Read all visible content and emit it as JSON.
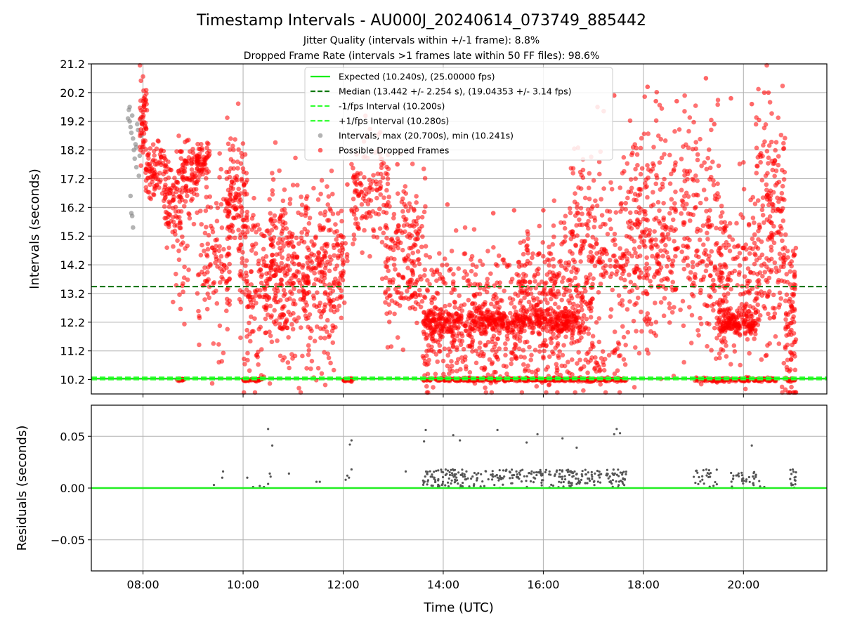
{
  "figure": {
    "title": "Timestamp Intervals - AU000J_20240614_073749_885442",
    "subtitle_1": "Jitter Quality (intervals within +/-1 frame): 8.8%",
    "subtitle_2": "Dropped Frame Rate (intervals >1 frames late within 50 FF files): 98.6%"
  },
  "colors": {
    "expected": "#00ee00",
    "median": "#007700",
    "band": "#33ff33",
    "intervals": "#808080",
    "dropped": "#ff0000",
    "grid": "#b0b0b0",
    "residual_line": "#22ee22",
    "residual_points": "#555555"
  },
  "chart_data": [
    {
      "type": "scatter",
      "name": "intervals",
      "xlabel": "",
      "ylabel": "Intervals (seconds)",
      "xlim": [
        "06:58",
        "21:40"
      ],
      "ylim": [
        9.7,
        21.2
      ],
      "x_ticks": [
        "08:00",
        "10:00",
        "12:00",
        "14:00",
        "16:00",
        "18:00",
        "20:00"
      ],
      "y_ticks": [
        10.2,
        11.2,
        12.2,
        13.2,
        14.2,
        15.2,
        16.2,
        17.2,
        18.2,
        19.2,
        20.2,
        21.2
      ],
      "y_tick_labels": [
        "10.2",
        "11.2",
        "12.2",
        "13.2",
        "14.2",
        "15.2",
        "16.2",
        "17.2",
        "18.2",
        "19.2",
        "20.2",
        "21.2"
      ],
      "grid": true,
      "legend_position": "top-center",
      "legend": [
        {
          "key": "expected",
          "label": "Expected (10.240s), (25.00000 fps)",
          "style": "solid-line"
        },
        {
          "key": "median",
          "label": "Median (13.442 +/- 2.254 s), (19.04353 +/- 3.14 fps)",
          "style": "dashed-line"
        },
        {
          "key": "minus",
          "label": "-1/fps Interval (10.200s)",
          "style": "dashed-line"
        },
        {
          "key": "plus",
          "label": "+1/fps Interval (10.280s)",
          "style": "dashed-line"
        },
        {
          "key": "intervals",
          "label": "Intervals, max (20.700s), min (10.241s)",
          "style": "marker"
        },
        {
          "key": "dropped",
          "label": "Possible Dropped Frames",
          "style": "marker"
        }
      ],
      "reference_lines": [
        {
          "key": "expected",
          "y": 10.24
        },
        {
          "key": "median",
          "y": 13.442
        },
        {
          "key": "minus",
          "y": 10.2
        },
        {
          "key": "plus",
          "y": 10.28
        }
      ],
      "series": [
        {
          "key": "intervals",
          "points": [
            [
              "07:43",
              19.6
            ],
            [
              "07:44",
              19.2
            ],
            [
              "07:45",
              19.0
            ],
            [
              "07:46",
              18.8
            ],
            [
              "07:47",
              19.4
            ],
            [
              "07:48",
              18.6
            ],
            [
              "07:49",
              18.2
            ],
            [
              "07:50",
              17.9
            ],
            [
              "07:51",
              18.4
            ],
            [
              "07:52",
              17.6
            ],
            [
              "07:53",
              19.1
            ],
            [
              "07:54",
              18.9
            ],
            [
              "07:55",
              17.3
            ],
            [
              "07:56",
              18.0
            ],
            [
              "07:45",
              16.6
            ],
            [
              "07:46",
              16.0
            ],
            [
              "07:47",
              15.9
            ],
            [
              "07:48",
              15.5
            ],
            [
              "07:57",
              19.3
            ],
            [
              "07:58",
              18.7
            ],
            [
              "07:42",
              19.3
            ],
            [
              "07:44",
              19.7
            ],
            [
              "07:52",
              18.3
            ]
          ]
        },
        {
          "key": "dropped",
          "density": [
            {
              "from": "07:56",
              "to": "08:04",
              "center": 19.1,
              "spread": 0.7,
              "count": 45
            },
            {
              "from": "08:00",
              "to": "08:05",
              "center": 19.9,
              "spread": 0.15,
              "count": 5
            },
            {
              "from": "08:03",
              "to": "08:28",
              "center": 17.5,
              "spread": 0.5,
              "count": 90
            },
            {
              "from": "08:25",
              "to": "08:48",
              "center": 16.4,
              "spread": 0.8,
              "count": 80
            },
            {
              "from": "08:45",
              "to": "09:05",
              "center": 17.3,
              "spread": 0.7,
              "count": 75
            },
            {
              "from": "08:35",
              "to": "08:55",
              "center": 14.5,
              "spread": 1.2,
              "count": 30
            },
            {
              "from": "09:03",
              "to": "09:20",
              "center": 17.8,
              "spread": 0.4,
              "count": 60
            },
            {
              "from": "09:05",
              "to": "09:45",
              "center": 14.3,
              "spread": 1.5,
              "count": 120
            },
            {
              "from": "09:40",
              "to": "10:05",
              "center": 16.6,
              "spread": 1.0,
              "count": 120
            },
            {
              "from": "09:55",
              "to": "11:00",
              "center": 14.0,
              "spread": 1.2,
              "count": 180
            },
            {
              "from": "10:00",
              "to": "11:50",
              "center": 12.6,
              "spread": 1.3,
              "count": 160
            },
            {
              "from": "10:30",
              "to": "12:00",
              "center": 15.0,
              "spread": 1.3,
              "count": 130
            },
            {
              "from": "11:00",
              "to": "12:05",
              "center": 13.8,
              "spread": 0.9,
              "count": 170
            },
            {
              "from": "12:10",
              "to": "12:55",
              "center": 16.6,
              "spread": 1.0,
              "count": 130
            },
            {
              "from": "12:50",
              "to": "13:35",
              "center": 14.0,
              "spread": 1.2,
              "count": 140
            },
            {
              "from": "13:00",
              "to": "13:40",
              "center": 15.6,
              "spread": 1.0,
              "count": 50
            },
            {
              "from": "13:35",
              "to": "16:45",
              "center": 12.2,
              "spread": 0.25,
              "count": 520
            },
            {
              "from": "13:35",
              "to": "17:00",
              "center": 12.8,
              "spread": 1.2,
              "count": 420
            },
            {
              "from": "13:35",
              "to": "17:40",
              "center": 10.85,
              "spread": 0.5,
              "count": 200
            },
            {
              "from": "15:30",
              "to": "17:40",
              "center": 14.0,
              "spread": 1.2,
              "count": 200
            },
            {
              "from": "16:30",
              "to": "17:45",
              "center": 15.4,
              "spread": 1.4,
              "count": 120
            },
            {
              "from": "17:40",
              "to": "19:40",
              "center": 14.5,
              "spread": 1.7,
              "count": 380
            },
            {
              "from": "17:45",
              "to": "19:30",
              "center": 17.4,
              "spread": 1.5,
              "count": 120
            },
            {
              "from": "19:30",
              "to": "20:15",
              "center": 12.2,
              "spread": 0.25,
              "count": 160
            },
            {
              "from": "19:30",
              "to": "20:50",
              "center": 13.8,
              "spread": 1.6,
              "count": 230
            },
            {
              "from": "20:15",
              "to": "20:50",
              "center": 17.0,
              "spread": 1.8,
              "count": 110
            },
            {
              "from": "20:50",
              "to": "21:03",
              "center": 12.3,
              "spread": 1.5,
              "count": 90
            }
          ],
          "baseline": {
            "y": 10.2,
            "spread": 0.03,
            "count": 700,
            "segments": [
              [
                "08:40",
                "08:50"
              ],
              [
                "10:00",
                "10:25"
              ],
              [
                "12:00",
                "12:15"
              ],
              [
                "13:35",
                "17:40"
              ],
              [
                "19:00",
                "20:40"
              ],
              [
                "20:50",
                "21:03"
              ]
            ]
          },
          "outliers": [
            [
              "08:01",
              20.0
            ],
            [
              "09:00",
              18.1
            ],
            [
              "12:05",
              17.0
            ],
            [
              "12:45",
              17.9
            ],
            [
              "13:05",
              17.7
            ],
            [
              "15:00",
              16.0
            ],
            [
              "15:25",
              16.1
            ],
            [
              "16:00",
              16.1
            ],
            [
              "17:05",
              19.7
            ],
            [
              "17:25",
              20.1
            ],
            [
              "18:05",
              20.4
            ],
            [
              "18:15",
              19.9
            ],
            [
              "19:15",
              20.7
            ],
            [
              "19:45",
              20.0
            ],
            [
              "20:10",
              19.8
            ],
            [
              "20:25",
              20.2
            ],
            [
              "20:30",
              20.2
            ],
            [
              "19:25",
              19.1
            ],
            [
              "18:40",
              19.9
            ],
            [
              "14:05",
              16.3
            ]
          ]
        }
      ]
    },
    {
      "type": "scatter",
      "name": "residuals",
      "xlabel": "Time (UTC)",
      "ylabel": "Residuals (seconds)",
      "xlim": [
        "06:58",
        "21:40"
      ],
      "ylim": [
        -0.08,
        0.08
      ],
      "x_ticks": [
        "08:00",
        "10:00",
        "12:00",
        "14:00",
        "16:00",
        "18:00",
        "20:00"
      ],
      "y_ticks": [
        0.05,
        0.0,
        -0.05
      ],
      "y_tick_labels": [
        "0.05",
        "0.00",
        "−0.05"
      ],
      "grid": true,
      "zero_line": 0.0,
      "clusters": [
        {
          "from": "13:35",
          "to": "17:40",
          "count": 300,
          "max": 0.018
        },
        {
          "from": "19:00",
          "to": "19:30",
          "count": 25,
          "max": 0.018
        },
        {
          "from": "19:45",
          "to": "20:20",
          "count": 35,
          "max": 0.018
        },
        {
          "from": "20:55",
          "to": "21:03",
          "count": 15,
          "max": 0.018
        }
      ],
      "points": [
        [
          "09:25",
          0.003
        ],
        [
          "09:35",
          0.01
        ],
        [
          "09:36",
          0.016
        ],
        [
          "10:05",
          0.01
        ],
        [
          "10:12",
          0.001
        ],
        [
          "10:20",
          0.002
        ],
        [
          "10:25",
          0.001
        ],
        [
          "10:30",
          0.057
        ],
        [
          "10:35",
          0.041
        ],
        [
          "10:30",
          0.004
        ],
        [
          "10:32",
          0.014
        ],
        [
          "10:33",
          0.011
        ],
        [
          "10:55",
          0.014
        ],
        [
          "11:28",
          0.006
        ],
        [
          "11:32",
          0.006
        ],
        [
          "12:03",
          0.008
        ],
        [
          "12:05",
          0.012
        ],
        [
          "12:07",
          0.01
        ],
        [
          "12:08",
          0.042
        ],
        [
          "12:10",
          0.046
        ],
        [
          "12:10",
          0.018
        ],
        [
          "13:15",
          0.016
        ],
        [
          "13:37",
          0.045
        ],
        [
          "13:39",
          0.056
        ],
        [
          "14:12",
          0.051
        ],
        [
          "14:20",
          0.046
        ],
        [
          "15:05",
          0.056
        ],
        [
          "15:40",
          0.044
        ],
        [
          "15:53",
          0.052
        ],
        [
          "16:23",
          0.048
        ],
        [
          "16:40",
          0.039
        ],
        [
          "17:25",
          0.052
        ],
        [
          "17:28",
          0.057
        ],
        [
          "17:32",
          0.053
        ],
        [
          "20:10",
          0.041
        ],
        [
          "20:25",
          0.001
        ]
      ]
    }
  ]
}
